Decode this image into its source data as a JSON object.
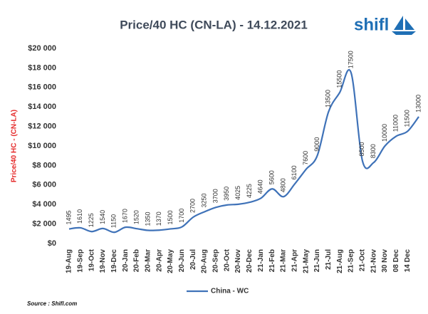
{
  "chart_data": {
    "type": "line",
    "title": "Price/40 HC (CN-LA) - 14.12.2021",
    "logo": "shifl",
    "y_label": "Price/40 HC - (CN-LA)",
    "source": "Source : Shifl.com",
    "categories": [
      "19-Aug",
      "19-Sep",
      "19-Oct",
      "19-Nov",
      "19-Dec",
      "20-Jan",
      "20-Feb",
      "20-Mar",
      "20-Apr",
      "20-May",
      "20-Jun",
      "20-Jul",
      "20-Aug",
      "20-Sep",
      "20-Oct",
      "20-Nov",
      "20-Dec",
      "21-Jan",
      "21-Feb",
      "21-Mar",
      "21-Apr",
      "21-May",
      "21-Jun",
      "21-Jul",
      "21-Aug",
      "21-Sep",
      "21-Oct",
      "21-Nov",
      "30 Nov",
      "08 Dec",
      "14 Dec",
      null
    ],
    "series": [
      {
        "name": "China - WC",
        "color": "#3f72b8",
        "values": [
          1495,
          1610,
          1225,
          1540,
          1150,
          1670,
          1520,
          1350,
          1370,
          1500,
          1700,
          2700,
          3250,
          3700,
          3950,
          4025,
          4225,
          4640,
          5600,
          4800,
          6100,
          7600,
          9000,
          13500,
          15500,
          17500,
          8500,
          8300,
          10000,
          11000,
          11500,
          13000
        ]
      }
    ],
    "ylim": [
      0,
      20000
    ],
    "yticks": [
      {
        "value": 0,
        "label": "$0"
      },
      {
        "value": 2000,
        "label": "$2 000"
      },
      {
        "value": 4000,
        "label": "$4 000"
      },
      {
        "value": 6000,
        "label": "$6 000"
      },
      {
        "value": 8000,
        "label": "$8 000"
      },
      {
        "value": 10000,
        "label": "$10 000"
      },
      {
        "value": 12000,
        "label": "$12 000"
      },
      {
        "value": 14000,
        "label": "$14 000"
      },
      {
        "value": 16000,
        "label": "$16 000"
      },
      {
        "value": 18000,
        "label": "$18 000"
      },
      {
        "value": 20000,
        "label": "$20 000"
      }
    ],
    "grid": false,
    "legend": "bottom"
  }
}
